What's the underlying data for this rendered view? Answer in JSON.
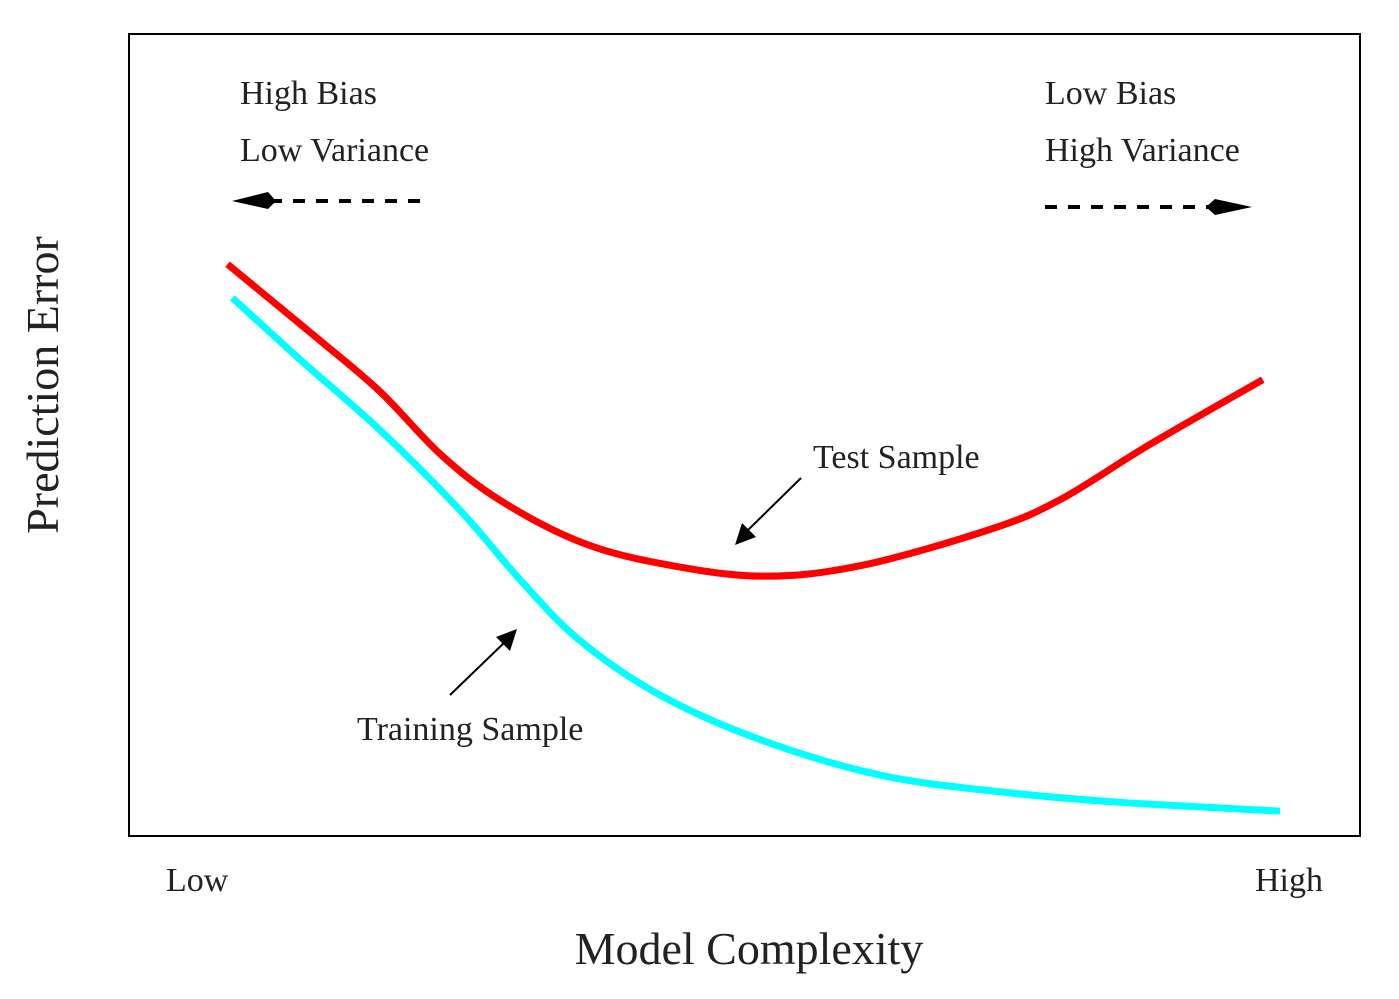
{
  "chart_data": {
    "type": "line",
    "title": "",
    "xlabel": "Model Complexity",
    "ylabel": "Prediction Error",
    "x_tick_labels": [
      "Low",
      "High"
    ],
    "xlim": [
      0,
      10
    ],
    "ylim": [
      0,
      10
    ],
    "grid": false,
    "units_note": "arbitrary units (no numeric ticks shown)",
    "series": [
      {
        "name": "Test Sample",
        "color": "#ff0000",
        "x": [
          0.8,
          1.55,
          2.04,
          2.53,
          3.01,
          3.66,
          4.31,
          5.13,
          5.94,
          6.99,
          7.56,
          8.29,
          9.21
        ],
        "y": [
          7.13,
          6.18,
          5.54,
          4.76,
          4.19,
          3.67,
          3.4,
          3.24,
          3.37,
          3.82,
          4.19,
          4.88,
          5.69
        ]
      },
      {
        "name": "Training Sample",
        "color": "#00ffff",
        "x": [
          0.84,
          1.39,
          2.04,
          2.69,
          3.18,
          3.66,
          4.31,
          5.13,
          6.1,
          7.08,
          8.05,
          9.35
        ],
        "y": [
          6.71,
          5.94,
          5.06,
          4.06,
          3.19,
          2.44,
          1.76,
          1.2,
          0.76,
          0.55,
          0.42,
          0.31
        ]
      }
    ],
    "annotations": {
      "left_line1": "High Bias",
      "left_line2": "Low Variance",
      "right_line1": "Low Bias",
      "right_line2": "High Variance",
      "test_label": "Test Sample",
      "train_label": "Training Sample"
    }
  }
}
